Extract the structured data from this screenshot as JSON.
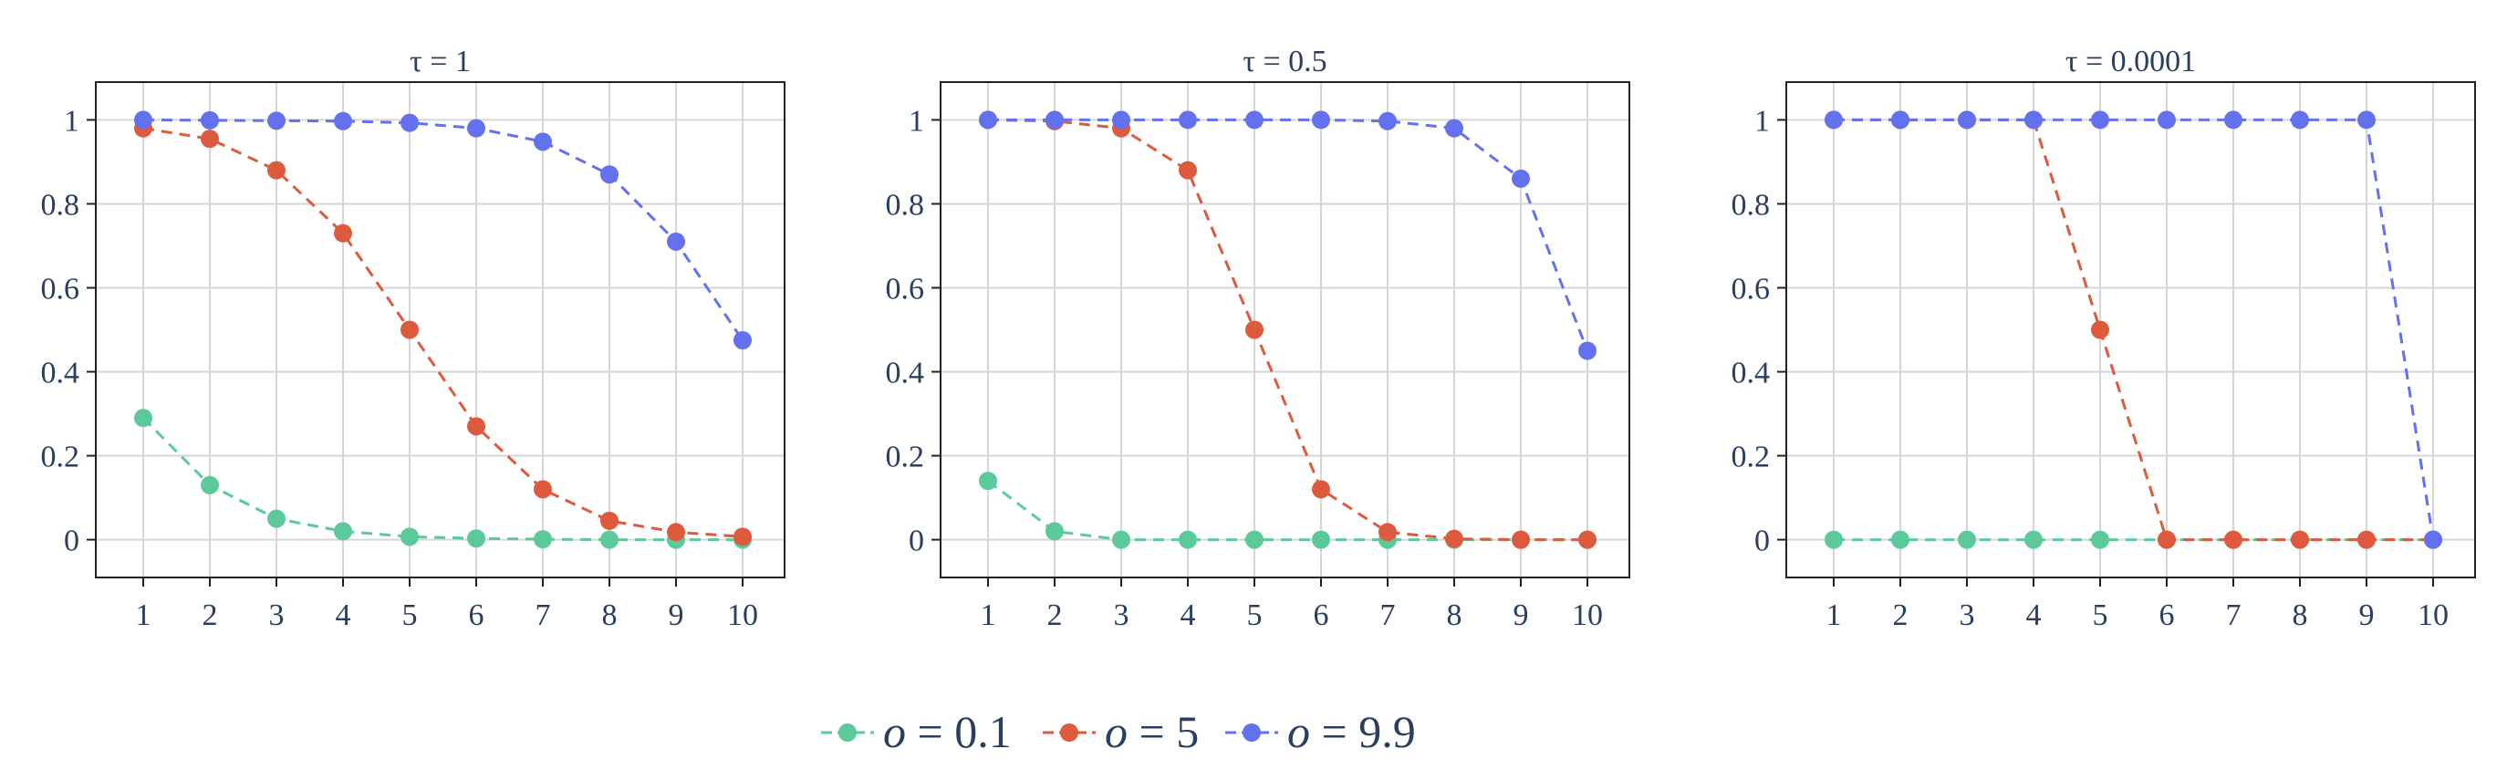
{
  "colors": {
    "o_0_1": "#5bc999",
    "o_5": "#de5a3e",
    "o_9_9": "#6471ef",
    "grid": "#d6d6d6",
    "axis": "#222222",
    "text": "#2a3f5f"
  },
  "legend": {
    "entries": [
      {
        "var": "o",
        "eq": " = 0.1"
      },
      {
        "var": "o",
        "eq": " = 5"
      },
      {
        "var": "o",
        "eq": " = 9.9"
      }
    ]
  },
  "chart_data": [
    {
      "type": "line",
      "title": "τ = 1",
      "x": [
        1,
        2,
        3,
        4,
        5,
        6,
        7,
        8,
        9,
        10
      ],
      "xticks": [
        "1",
        "2",
        "3",
        "4",
        "5",
        "6",
        "7",
        "8",
        "9",
        "10"
      ],
      "yticks": [
        "0",
        "0.2",
        "0.4",
        "0.6",
        "0.8",
        "1"
      ],
      "ylim": [
        -0.09,
        1.09
      ],
      "grid": true,
      "series": [
        {
          "name": "o = 0.1",
          "values": [
            0.29,
            0.13,
            0.05,
            0.02,
            0.007,
            0.003,
            0.001,
            0.0,
            0.0,
            0.0
          ]
        },
        {
          "name": "o = 5",
          "values": [
            0.98,
            0.955,
            0.88,
            0.73,
            0.5,
            0.27,
            0.12,
            0.045,
            0.018,
            0.007
          ]
        },
        {
          "name": "o = 9.9",
          "values": [
            1.0,
            0.999,
            0.998,
            0.997,
            0.993,
            0.98,
            0.948,
            0.87,
            0.71,
            0.475
          ]
        }
      ]
    },
    {
      "type": "line",
      "title": "τ = 0.5",
      "x": [
        1,
        2,
        3,
        4,
        5,
        6,
        7,
        8,
        9,
        10
      ],
      "xticks": [
        "1",
        "2",
        "3",
        "4",
        "5",
        "6",
        "7",
        "8",
        "9",
        "10"
      ],
      "yticks": [
        "0",
        "0.2",
        "0.4",
        "0.6",
        "0.8",
        "1"
      ],
      "ylim": [
        -0.09,
        1.09
      ],
      "grid": true,
      "series": [
        {
          "name": "o = 0.1",
          "values": [
            0.14,
            0.02,
            0.0,
            0.0,
            0.0,
            0.0,
            0.0,
            0.0,
            0.0,
            0.0
          ]
        },
        {
          "name": "o = 5",
          "values": [
            1.0,
            0.997,
            0.98,
            0.88,
            0.5,
            0.12,
            0.018,
            0.002,
            0.0,
            0.0
          ]
        },
        {
          "name": "o = 9.9",
          "values": [
            1.0,
            1.0,
            1.0,
            1.0,
            1.0,
            1.0,
            0.997,
            0.98,
            0.86,
            0.45
          ]
        }
      ]
    },
    {
      "type": "line",
      "title": "τ = 0.0001",
      "x": [
        1,
        2,
        3,
        4,
        5,
        6,
        7,
        8,
        9,
        10
      ],
      "xticks": [
        "1",
        "2",
        "3",
        "4",
        "5",
        "6",
        "7",
        "8",
        "9",
        "10"
      ],
      "yticks": [
        "0",
        "0.2",
        "0.4",
        "0.6",
        "0.8",
        "1"
      ],
      "ylim": [
        -0.09,
        1.09
      ],
      "grid": true,
      "series": [
        {
          "name": "o = 0.1",
          "values": [
            0,
            0,
            0,
            0,
            0,
            0,
            0,
            0,
            0,
            0
          ]
        },
        {
          "name": "o = 5",
          "values": [
            1,
            1,
            1,
            1,
            0.5,
            0,
            0,
            0,
            0,
            0
          ]
        },
        {
          "name": "o = 9.9",
          "values": [
            1,
            1,
            1,
            1,
            1,
            1,
            1,
            1,
            1,
            0
          ]
        }
      ]
    }
  ]
}
